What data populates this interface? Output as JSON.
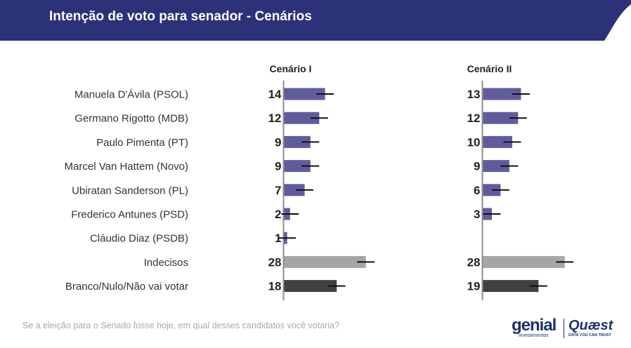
{
  "header": {
    "title": "Intenção de voto para senador - Cenários"
  },
  "question": "Se a eleição para o Senado fosse hoje, em qual desses candidatos você votaria?",
  "logos": {
    "genial": "genial",
    "genial_sub": "investimentos",
    "quaest": "Quæst",
    "quaest_sub": "DATA YOU CAN TRUST"
  },
  "colors": {
    "header": "#2c3278",
    "candidate": "#605c9c",
    "undecided": "#a6a6a6",
    "blank": "#404040",
    "error_bar": "#111111",
    "axis": "#8c8c8c"
  },
  "chart_data": {
    "type": "bar",
    "orientation": "horizontal",
    "categories": [
      "Manuela D'Ávila (PSOL)",
      "Germano Rigotto (MDB)",
      "Paulo Pimenta (PT)",
      "Marcel Van Hattem (Novo)",
      "Ubiratan Sanderson (PL)",
      "Frederico Antunes (PSD)",
      "Cláudio Diaz (PSDB)",
      "Indecisos",
      "Branco/Nulo/Não vai votar"
    ],
    "series": [
      {
        "name": "Cenário I",
        "values": [
          14,
          12,
          9,
          9,
          7,
          2,
          1,
          28,
          18
        ]
      },
      {
        "name": "Cenário II",
        "values": [
          13,
          12,
          10,
          9,
          6,
          3,
          null,
          28,
          19
        ]
      }
    ],
    "error_margin": 3,
    "data_labels": true
  }
}
